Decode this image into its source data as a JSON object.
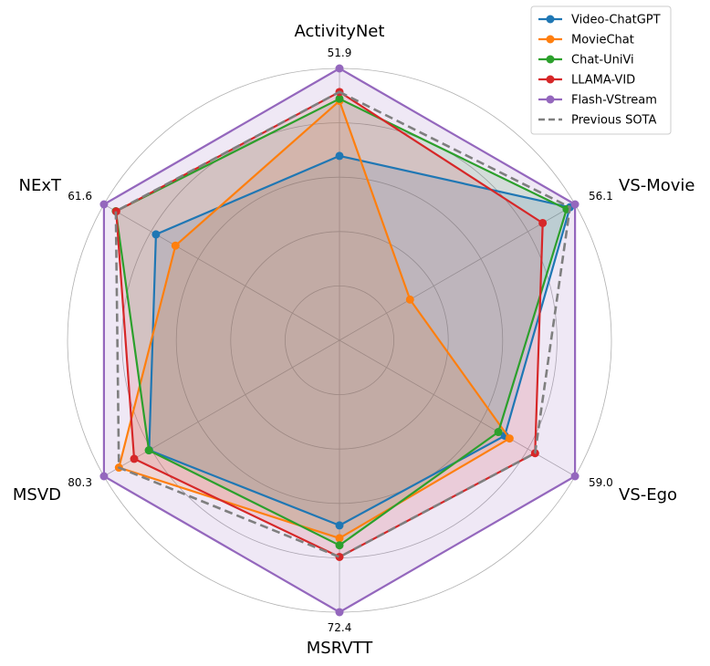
{
  "chart_data": {
    "type": "radar",
    "axes": [
      {
        "name": "ActivityNet",
        "max": 51.9,
        "max_label": "51.9"
      },
      {
        "name": "VS-Movie",
        "max": 56.1,
        "max_label": "56.1"
      },
      {
        "name": "VS-Ego",
        "max": 59.0,
        "max_label": "59.0"
      },
      {
        "name": "MSRVTT",
        "max": 72.4,
        "max_label": "72.4"
      },
      {
        "name": "MSVD",
        "max": 80.3,
        "max_label": "80.3"
      },
      {
        "name": "NExT",
        "max": 61.6,
        "max_label": "61.6"
      }
    ],
    "series": [
      {
        "name": "Video-ChatGPT",
        "color": "#1f77b4",
        "dashed": false,
        "fill": true,
        "values": [
          35.2,
          54.9,
          41.4,
          49.3,
          64.9,
          48.0
        ]
      },
      {
        "name": "MovieChat",
        "color": "#ff7f0e",
        "dashed": false,
        "fill": true,
        "values": [
          45.7,
          16.8,
          42.6,
          52.7,
          75.2,
          42.9
        ]
      },
      {
        "name": "Chat-UniVi",
        "color": "#2ca02c",
        "dashed": false,
        "fill": true,
        "values": [
          46.1,
          54.1,
          39.8,
          54.6,
          65.0,
          58.5
        ]
      },
      {
        "name": "LLAMA-VID",
        "color": "#d62728",
        "dashed": false,
        "fill": true,
        "values": [
          47.4,
          48.4,
          49.0,
          57.7,
          70.0,
          58.4
        ]
      },
      {
        "name": "Flash-VStream",
        "color": "#9467bd",
        "dashed": false,
        "fill": true,
        "values": [
          51.9,
          56.1,
          59.0,
          72.4,
          80.3,
          61.6
        ]
      },
      {
        "name": "Previous SOTA",
        "color": "#7f7f7f",
        "dashed": true,
        "fill": false,
        "values": [
          47.4,
          54.9,
          49.0,
          57.7,
          75.2,
          58.5
        ]
      }
    ],
    "grid": true,
    "legend_position": "top-right"
  }
}
